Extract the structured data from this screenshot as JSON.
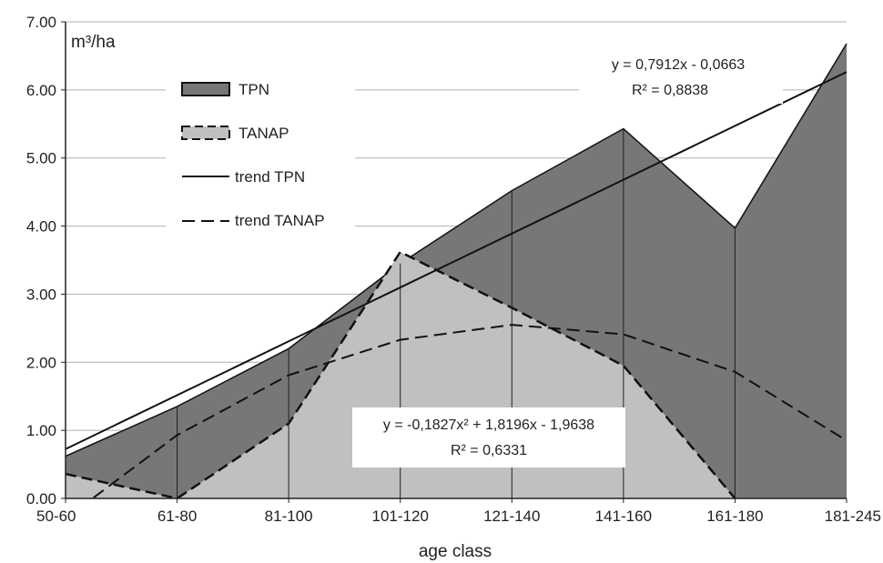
{
  "chart_data": {
    "type": "area",
    "xlabel": "age class",
    "ylabel": "m³/ha",
    "ylim": [
      0,
      7
    ],
    "y_ticks": [
      "0.00",
      "1.00",
      "2.00",
      "3.00",
      "4.00",
      "5.00",
      "6.00",
      "7.00"
    ],
    "categories": [
      "50-60",
      "61-80",
      "81-100",
      "101-120",
      "121-140",
      "141-160",
      "161-180",
      "181-245"
    ],
    "grid": true,
    "legend_position": "top-left",
    "series": [
      {
        "name": "TPN",
        "kind": "area",
        "color": "#777777",
        "values": [
          0.62,
          1.35,
          2.2,
          3.45,
          4.52,
          5.43,
          3.97,
          6.68
        ]
      },
      {
        "name": "TANAP",
        "kind": "area",
        "color": "#c0c0c0",
        "values": [
          0.36,
          0.0,
          1.1,
          3.62,
          2.8,
          1.95,
          0.0,
          null
        ]
      },
      {
        "name": "trend TPN",
        "kind": "line",
        "style": "solid",
        "values": [
          0.7249,
          1.5161,
          2.3073,
          3.0985,
          3.8897,
          4.6809,
          5.4721,
          6.2633
        ]
      },
      {
        "name": "trend TANAP",
        "kind": "line",
        "style": "dashed",
        "x_start": 0.25,
        "values": [
          0.01,
          0.93,
          1.81,
          2.33,
          2.55,
          2.41,
          1.86,
          0.85
        ]
      }
    ],
    "annotations": {
      "tpn_equation": "y = 0,7912x - 0,0663",
      "tpn_r2": "R² = 0,8838",
      "tanap_equation": "y = -0,1827x² + 1,8196x - 1,9638",
      "tanap_r2": "R² = 0,6331"
    }
  }
}
